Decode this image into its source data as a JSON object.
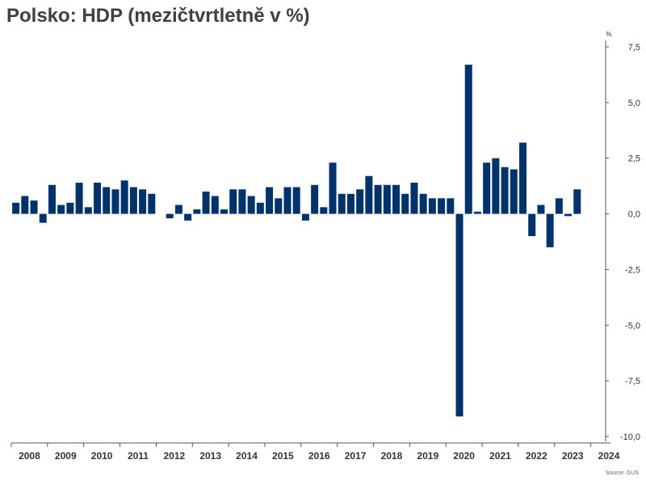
{
  "title": "Polsko: HDP (mezičtvrtletně v %)",
  "source": "Source: GUS",
  "colors": {
    "bar": "#00326b",
    "axis": "#555555"
  },
  "chart_data": {
    "type": "bar",
    "title": "Polsko: HDP (mezičtvrtletně v %)",
    "unit_label": "%",
    "ylim": [
      -10,
      7.5
    ],
    "yticks": [
      7.5,
      5,
      2.5,
      0,
      -2.5,
      -5,
      -7.5,
      -10
    ],
    "ytick_labels": [
      "7,5",
      "5,0",
      "2,5",
      "0,0",
      "-2,5",
      "-5,0",
      "-7,5",
      "-10,0"
    ],
    "years": [
      "2008",
      "2009",
      "2010",
      "2011",
      "2012",
      "2013",
      "2014",
      "2015",
      "2016",
      "2017",
      "2018",
      "2019",
      "2020",
      "2021",
      "2022",
      "2023",
      "2024"
    ],
    "axis_position": "right",
    "grid": false,
    "series": [
      {
        "values": [
          0.5,
          0.8,
          0.6,
          -0.4,
          1.3,
          0.4,
          0.5,
          1.4,
          0.3,
          1.4,
          1.2,
          1.1,
          1.5,
          1.2,
          1.1,
          0.9,
          0.0,
          -0.2,
          0.4,
          -0.3,
          0.2,
          1.0,
          0.8,
          0.2,
          1.1,
          1.1,
          0.8,
          0.5,
          1.2,
          0.7,
          1.2,
          1.2,
          -0.3,
          1.3,
          0.3,
          2.3,
          0.9,
          0.9,
          1.1,
          1.7,
          1.3,
          1.3,
          1.3,
          0.9,
          1.4,
          0.9,
          0.7,
          0.7,
          0.7,
          -9.1,
          6.7,
          0.1,
          2.3,
          2.5,
          2.1,
          2.0,
          3.2,
          -1.0,
          0.4,
          -1.5,
          0.7,
          -0.1,
          1.1
        ]
      }
    ]
  }
}
